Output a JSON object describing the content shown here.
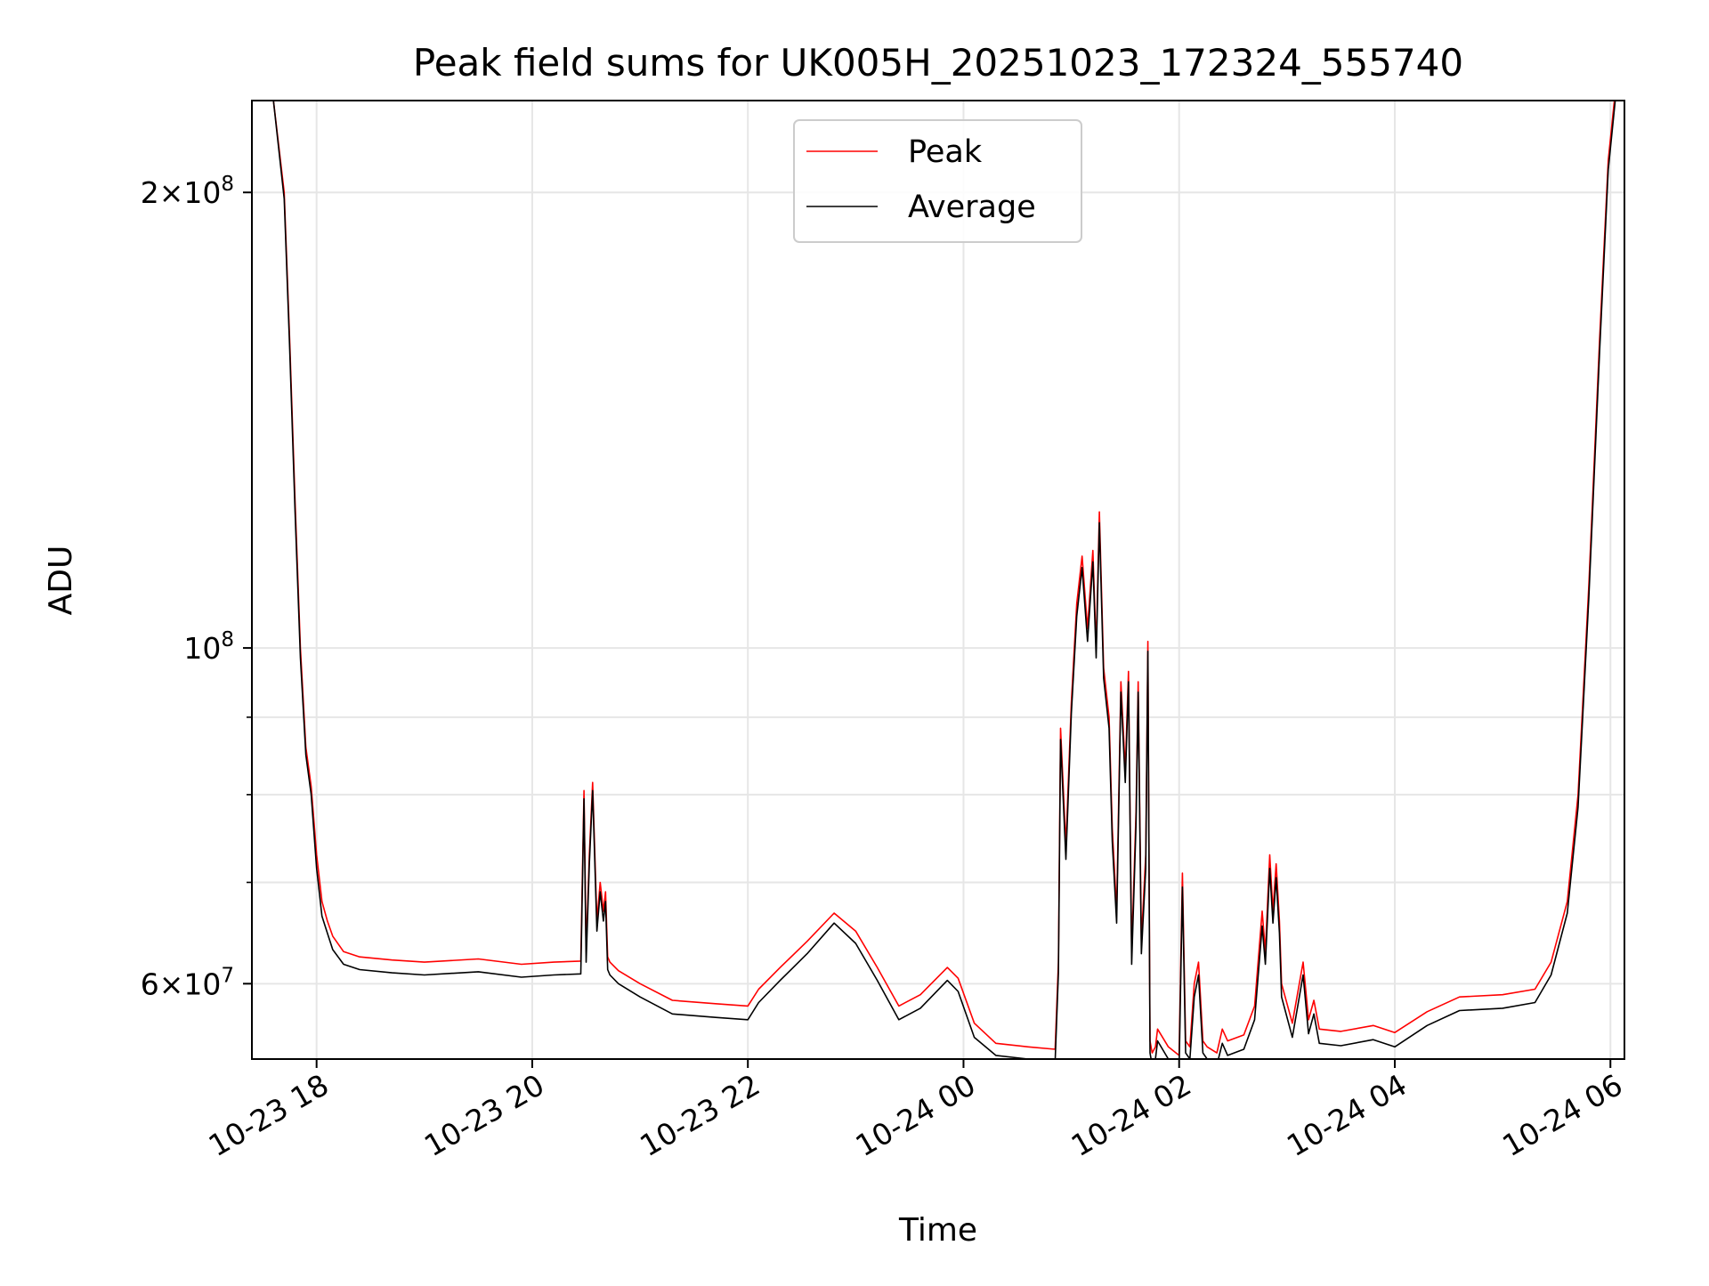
{
  "chart_data": {
    "type": "line",
    "title": "Peak field sums for UK005H_20251023_172324_555740",
    "xlabel": "Time",
    "ylabel": "ADU",
    "yscale": "log",
    "xlim": [
      17.4,
      30.13
    ],
    "ylim": [
      53500000,
      230000000
    ],
    "grid": true,
    "legend_position": "top-center",
    "x_unit": "hours since 2025-10-23 00:00",
    "x_ticks": [
      {
        "value": 18,
        "label": "10-23 18"
      },
      {
        "value": 20,
        "label": "10-23 20"
      },
      {
        "value": 22,
        "label": "10-23 22"
      },
      {
        "value": 24,
        "label": "10-24 00"
      },
      {
        "value": 26,
        "label": "10-24 02"
      },
      {
        "value": 28,
        "label": "10-24 04"
      },
      {
        "value": 30,
        "label": "10-24 06"
      }
    ],
    "y_major_ticks": [
      {
        "value": 60000000,
        "mantissa": "6",
        "exponent": "7"
      },
      {
        "value": 100000000,
        "mantissa": "",
        "exponent": "8"
      },
      {
        "value": 200000000,
        "mantissa": "2",
        "exponent": "8"
      }
    ],
    "y_minor_ticks": [
      70000000,
      80000000,
      90000000
    ],
    "series": [
      {
        "name": "Peak",
        "color": "#ff0000",
        "x": [
          17.6,
          17.7,
          17.75,
          17.8,
          17.85,
          17.9,
          17.95,
          18.0,
          18.05,
          18.1,
          18.15,
          18.25,
          18.4,
          18.7,
          19.0,
          19.5,
          19.9,
          20.2,
          20.45,
          20.48,
          20.5,
          20.53,
          20.56,
          20.6,
          20.63,
          20.66,
          20.68,
          20.7,
          20.72,
          20.8,
          21.0,
          21.3,
          21.7,
          22.0,
          22.1,
          22.3,
          22.55,
          22.8,
          23.0,
          23.2,
          23.4,
          23.6,
          23.85,
          23.95,
          24.1,
          24.3,
          24.6,
          24.85,
          24.88,
          24.9,
          24.95,
          25.0,
          25.05,
          25.1,
          25.15,
          25.2,
          25.23,
          25.26,
          25.3,
          25.35,
          25.38,
          25.42,
          25.46,
          25.5,
          25.53,
          25.56,
          25.6,
          25.62,
          25.65,
          25.69,
          25.71,
          25.73,
          25.75,
          25.78,
          25.8,
          25.9,
          26.0,
          26.03,
          26.06,
          26.1,
          26.14,
          26.18,
          26.22,
          26.26,
          26.35,
          26.4,
          26.45,
          26.6,
          26.7,
          26.77,
          26.8,
          26.84,
          26.87,
          26.9,
          26.93,
          26.95,
          27.05,
          27.15,
          27.2,
          27.25,
          27.3,
          27.5,
          27.8,
          28.0,
          28.3,
          28.6,
          29.0,
          29.3,
          29.45,
          29.6,
          29.7,
          29.8,
          29.9,
          29.98,
          30.05
        ],
        "y": [
          230000000,
          200000000,
          160000000,
          125000000,
          100000000,
          86000000,
          81000000,
          73000000,
          68000000,
          66000000,
          64500000,
          63000000,
          62500000,
          62200000,
          62000000,
          62300000,
          61800000,
          62000000,
          62100000,
          80500000,
          63000000,
          73000000,
          81500000,
          66000000,
          70000000,
          67000000,
          69000000,
          62500000,
          62000000,
          61200000,
          60000000,
          58500000,
          58200000,
          58000000,
          59500000,
          61500000,
          64000000,
          66800000,
          65000000,
          61500000,
          58000000,
          59000000,
          61500000,
          60500000,
          56500000,
          54800000,
          54500000,
          54300000,
          62000000,
          88500000,
          74000000,
          92000000,
          107000000,
          115000000,
          103000000,
          116000000,
          100000000,
          123000000,
          97000000,
          90000000,
          76000000,
          67000000,
          95000000,
          83000000,
          96500000,
          63000000,
          78000000,
          95000000,
          64000000,
          73000000,
          101000000,
          55000000,
          54000000,
          54500000,
          56000000,
          54500000,
          53800000,
          71000000,
          55000000,
          54500000,
          60000000,
          62000000,
          55000000,
          54500000,
          54000000,
          56000000,
          55000000,
          55500000,
          58000000,
          67000000,
          63000000,
          73000000,
          67000000,
          72000000,
          66000000,
          60000000,
          56500000,
          62000000,
          56800000,
          58500000,
          56000000,
          55800000,
          56300000,
          55700000,
          57500000,
          58800000,
          59000000,
          59500000,
          62000000,
          68000000,
          80000000,
          110000000,
          160000000,
          210000000,
          235000000
        ]
      },
      {
        "name": "Average",
        "color": "#000000",
        "x": [
          17.6,
          17.7,
          17.75,
          17.8,
          17.85,
          17.9,
          17.95,
          18.0,
          18.05,
          18.1,
          18.15,
          18.25,
          18.4,
          18.7,
          19.0,
          19.5,
          19.9,
          20.2,
          20.45,
          20.48,
          20.5,
          20.53,
          20.56,
          20.6,
          20.63,
          20.66,
          20.68,
          20.7,
          20.72,
          20.8,
          21.0,
          21.3,
          21.7,
          22.0,
          22.1,
          22.3,
          22.55,
          22.8,
          23.0,
          23.2,
          23.4,
          23.6,
          23.85,
          23.95,
          24.1,
          24.3,
          24.6,
          24.85,
          24.88,
          24.9,
          24.95,
          25.0,
          25.05,
          25.1,
          25.15,
          25.2,
          25.23,
          25.26,
          25.3,
          25.35,
          25.38,
          25.42,
          25.46,
          25.5,
          25.53,
          25.56,
          25.6,
          25.62,
          25.65,
          25.69,
          25.71,
          25.73,
          25.75,
          25.78,
          25.8,
          25.9,
          26.0,
          26.03,
          26.06,
          26.1,
          26.14,
          26.18,
          26.22,
          26.26,
          26.35,
          26.4,
          26.45,
          26.6,
          26.7,
          26.77,
          26.8,
          26.84,
          26.87,
          26.9,
          26.93,
          26.95,
          27.05,
          27.15,
          27.2,
          27.25,
          27.3,
          27.5,
          27.8,
          28.0,
          28.3,
          28.6,
          29.0,
          29.3,
          29.45,
          29.6,
          29.7,
          29.8,
          29.9,
          29.98,
          30.05
        ],
        "y": [
          230000000,
          198000000,
          158000000,
          123000000,
          98500000,
          85000000,
          80000000,
          71500000,
          66500000,
          64800000,
          63200000,
          61800000,
          61300000,
          61000000,
          60800000,
          61100000,
          60600000,
          60800000,
          60900000,
          79500000,
          62000000,
          72000000,
          80500000,
          65000000,
          69000000,
          66000000,
          68000000,
          61300000,
          60800000,
          60000000,
          58800000,
          57300000,
          57000000,
          56800000,
          58300000,
          60300000,
          62800000,
          65800000,
          63800000,
          60300000,
          56800000,
          57800000,
          60300000,
          59300000,
          55300000,
          53800000,
          53500000,
          53300000,
          61000000,
          87000000,
          72500000,
          90500000,
          105000000,
          113000000,
          101000000,
          114000000,
          98500000,
          121000000,
          95500000,
          88500000,
          74500000,
          65800000,
          93500000,
          81500000,
          95000000,
          61800000,
          76500000,
          93500000,
          62800000,
          71500000,
          99500000,
          54000000,
          53000000,
          53500000,
          55000000,
          53500000,
          52800000,
          69500000,
          54000000,
          53500000,
          58800000,
          60800000,
          54000000,
          53500000,
          53000000,
          54800000,
          53800000,
          54300000,
          56800000,
          65500000,
          61800000,
          71500000,
          65800000,
          70500000,
          64800000,
          58800000,
          55300000,
          60800000,
          55600000,
          57300000,
          54800000,
          54600000,
          55100000,
          54500000,
          56300000,
          57600000,
          57800000,
          58300000,
          60800000,
          66800000,
          78500000,
          108000000,
          157000000,
          207000000,
          232000000
        ]
      }
    ]
  }
}
